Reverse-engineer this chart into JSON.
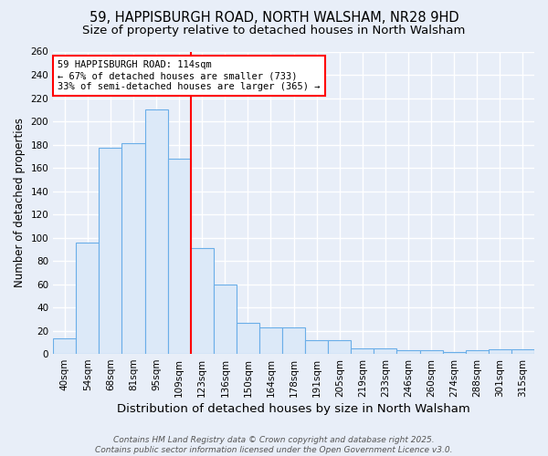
{
  "title1": "59, HAPPISBURGH ROAD, NORTH WALSHAM, NR28 9HD",
  "title2": "Size of property relative to detached houses in North Walsham",
  "xlabel": "Distribution of detached houses by size in North Walsham",
  "ylabel": "Number of detached properties",
  "footnote1": "Contains HM Land Registry data © Crown copyright and database right 2025.",
  "footnote2": "Contains public sector information licensed under the Open Government Licence v3.0.",
  "categories": [
    "40sqm",
    "54sqm",
    "68sqm",
    "81sqm",
    "95sqm",
    "109sqm",
    "123sqm",
    "136sqm",
    "150sqm",
    "164sqm",
    "178sqm",
    "191sqm",
    "205sqm",
    "219sqm",
    "233sqm",
    "246sqm",
    "260sqm",
    "274sqm",
    "288sqm",
    "301sqm",
    "315sqm"
  ],
  "values": [
    13,
    96,
    177,
    181,
    210,
    168,
    91,
    60,
    27,
    23,
    23,
    12,
    12,
    5,
    5,
    3,
    3,
    2,
    3,
    4,
    4
  ],
  "bar_color": "#dce9f8",
  "bar_edge_color": "#6aaee8",
  "red_line_index": 5,
  "annotation_text": "59 HAPPISBURGH ROAD: 114sqm\n← 67% of detached houses are smaller (733)\n33% of semi-detached houses are larger (365) →",
  "annotation_box_color": "white",
  "annotation_box_edge_color": "red",
  "ylim": [
    0,
    260
  ],
  "yticks": [
    0,
    20,
    40,
    60,
    80,
    100,
    120,
    140,
    160,
    180,
    200,
    220,
    240,
    260
  ],
  "background_color": "#e8eef8",
  "grid_color": "white",
  "title1_fontsize": 10.5,
  "title2_fontsize": 9.5,
  "xlabel_fontsize": 9.5,
  "ylabel_fontsize": 8.5,
  "tick_fontsize": 7.5,
  "annotation_fontsize": 7.5,
  "footnote_fontsize": 6.5
}
